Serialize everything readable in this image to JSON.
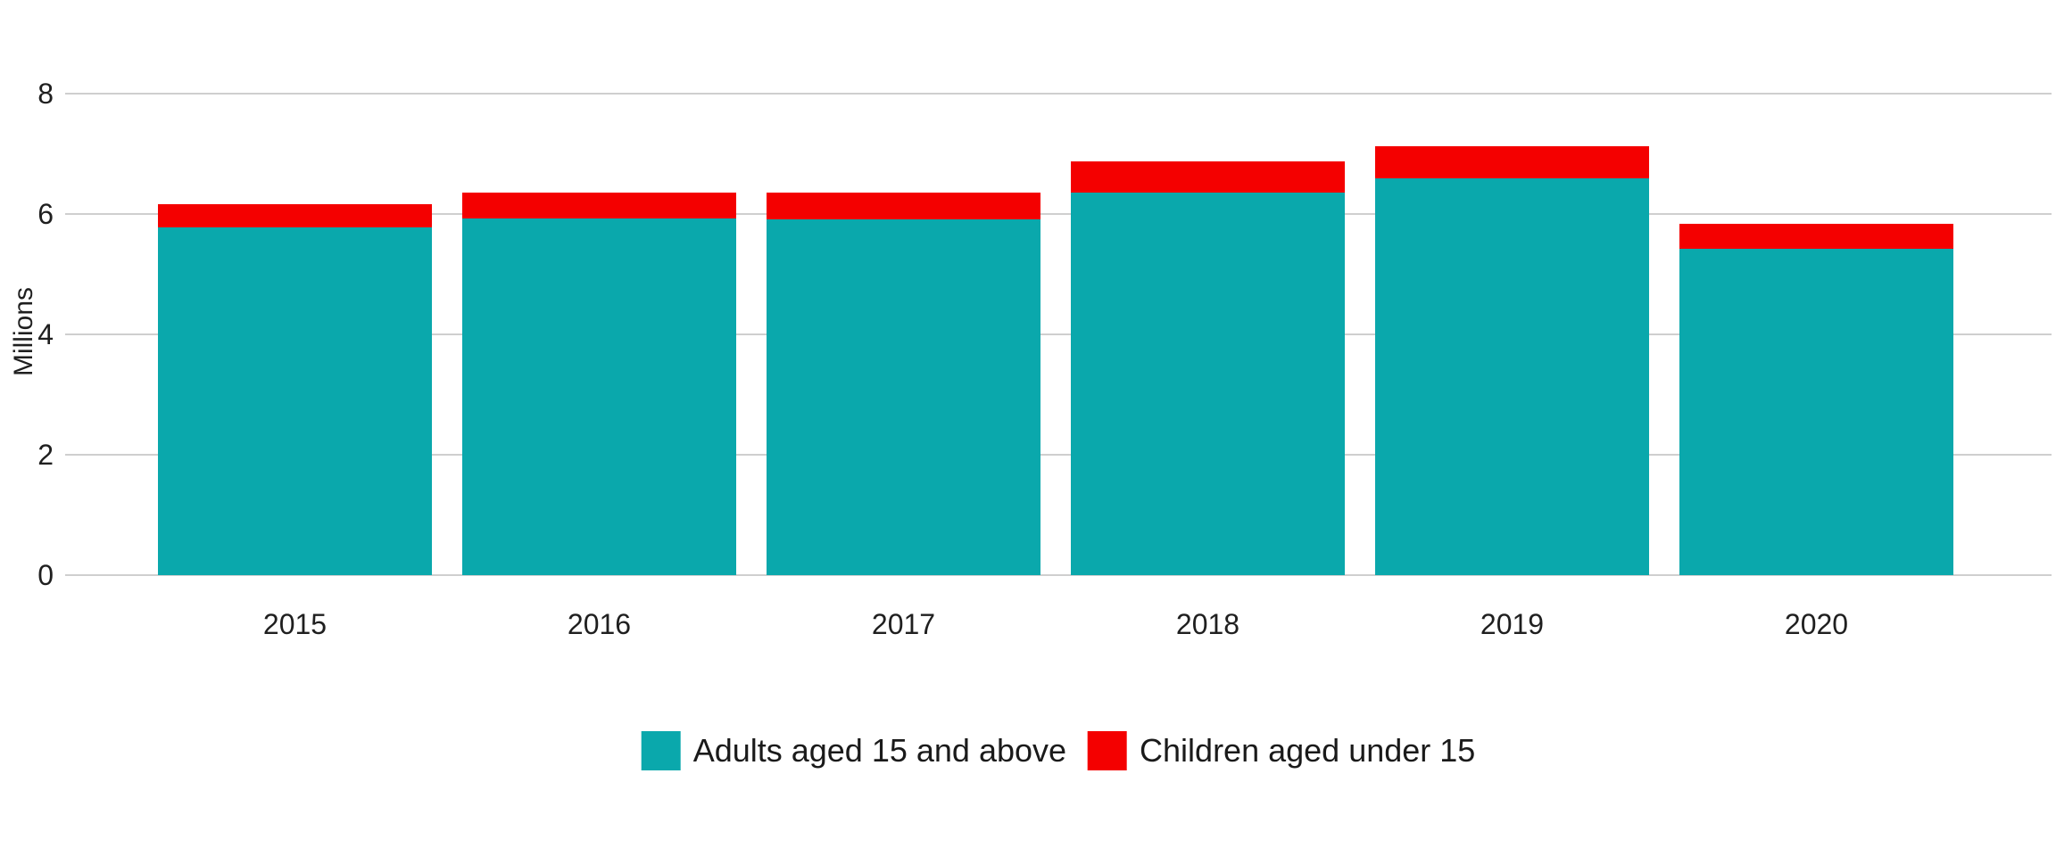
{
  "chart_data": {
    "type": "bar",
    "stacked": true,
    "title": "",
    "xlabel": "",
    "ylabel": "Millions",
    "categories": [
      "2015",
      "2016",
      "2017",
      "2018",
      "2019",
      "2020"
    ],
    "series": [
      {
        "name": "Adults aged 15 and above",
        "color": "#0aa8ac",
        "values": [
          5.78,
          5.92,
          5.91,
          6.36,
          6.59,
          5.42
        ]
      },
      {
        "name": "Children aged under 15",
        "color": "#f40000",
        "values": [
          0.38,
          0.43,
          0.44,
          0.51,
          0.53,
          0.41
        ]
      }
    ],
    "totals": [
      6.16,
      6.35,
      6.35,
      6.87,
      7.12,
      5.83
    ],
    "ylim": [
      0,
      8
    ],
    "yticks": [
      0,
      2,
      4,
      6,
      8
    ],
    "grid": true,
    "legend_position": "bottom"
  }
}
